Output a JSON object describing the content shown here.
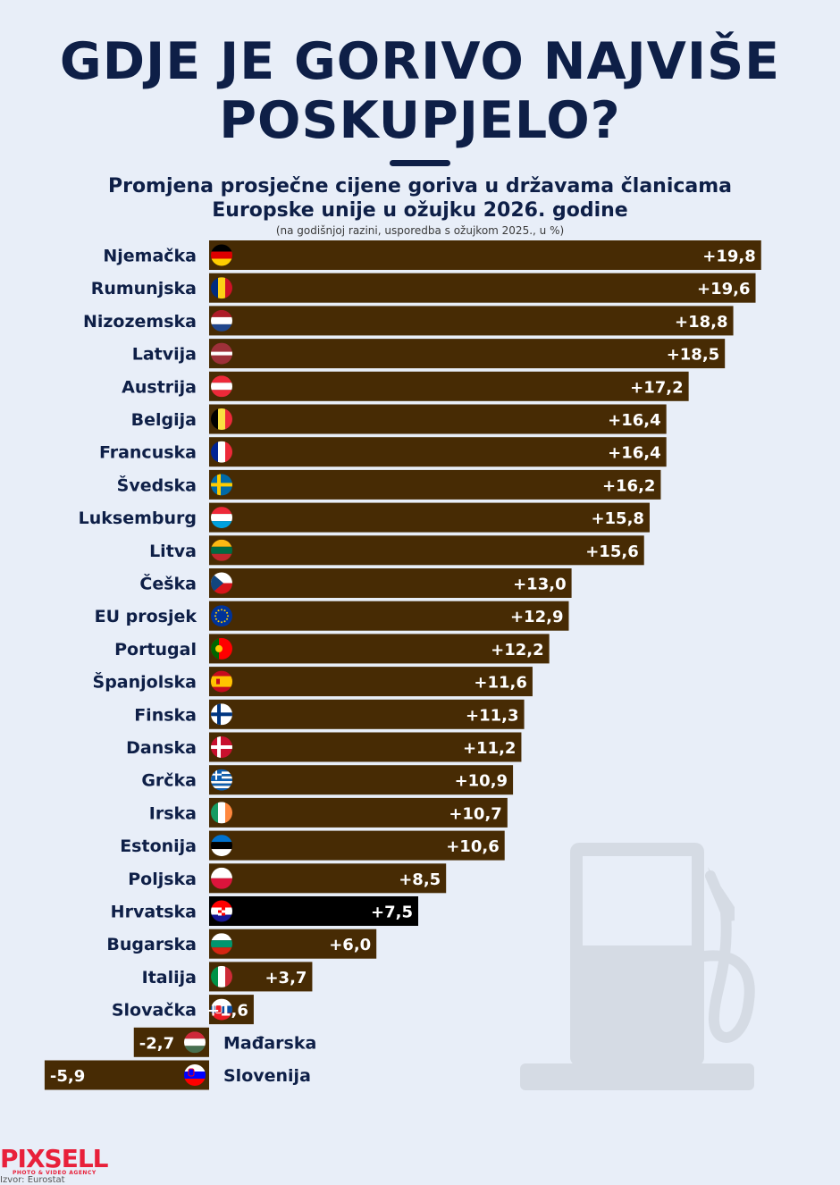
{
  "title_line1": "GDJE JE GORIVO NAJVIŠE",
  "title_line2": "POSKUPJELO?",
  "subtitle_line1": "Promjena prosječne cijene goriva u državama članicama",
  "subtitle_line2": "Europske unije u ožujku 2026. godine",
  "note": "(na godišnjoj razini, usporedba s ožujkom 2025., u %)",
  "logo": "PIXSELL",
  "logo_sub": "PHOTO & VIDEO AGENCY",
  "source": "Izvor: Eurostat",
  "colors": {
    "bar": "#472b04",
    "highlight_bar": "#000000",
    "title": "#0e1f47",
    "background": "#e8eef8",
    "pump": "#d5dbe4"
  },
  "chart_data": {
    "type": "bar",
    "orientation": "horizontal",
    "unit": "%",
    "categories": [
      "Njemačka",
      "Rumunjska",
      "Nizozemska",
      "Latvija",
      "Austrija",
      "Belgija",
      "Francuska",
      "Švedska",
      "Luksemburg",
      "Litva",
      "Češka",
      "EU prosjek",
      "Portugal",
      "Španjolska",
      "Finska",
      "Danska",
      "Grčka",
      "Irska",
      "Estonija",
      "Poljska",
      "Hrvatska",
      "Bugarska",
      "Italija",
      "Slovačka",
      "Mađarska",
      "Slovenija"
    ],
    "values": [
      19.8,
      19.6,
      18.8,
      18.5,
      17.2,
      16.4,
      16.4,
      16.2,
      15.8,
      15.6,
      13.0,
      12.9,
      12.2,
      11.6,
      11.3,
      11.2,
      10.9,
      10.7,
      10.6,
      8.5,
      7.5,
      6.0,
      3.7,
      1.6,
      -2.7,
      -5.9
    ],
    "value_labels": [
      "+19,8",
      "+19,6",
      "+18,8",
      "+18,5",
      "+17,2",
      "+16,4",
      "+16,4",
      "+16,2",
      "+15,8",
      "+15,6",
      "+13,0",
      "+12,9",
      "+12,2",
      "+11,6",
      "+11,3",
      "+11,2",
      "+10,9",
      "+10,7",
      "+10,6",
      "+8,5",
      "+7,5",
      "+6,0",
      "+3,7",
      "+1,6",
      "-2,7",
      "-5,9"
    ],
    "flags": [
      "flag-germany",
      "flag-romania",
      "flag-netherlands",
      "flag-latvia",
      "flag-austria",
      "flag-belgium",
      "flag-france",
      "flag-sweden",
      "flag-luxembourg",
      "flag-lithuania",
      "flag-czechia",
      "flag-eu",
      "flag-portugal",
      "flag-spain",
      "flag-finland",
      "flag-denmark",
      "flag-greece",
      "flag-ireland",
      "flag-estonia",
      "flag-poland",
      "flag-croatia",
      "flag-bulgaria",
      "flag-italy",
      "flag-slovakia",
      "flag-hungary",
      "flag-slovenia"
    ],
    "highlight": "Hrvatska",
    "xlim": [
      -5.9,
      19.8
    ],
    "grid": false,
    "legend": "none"
  }
}
